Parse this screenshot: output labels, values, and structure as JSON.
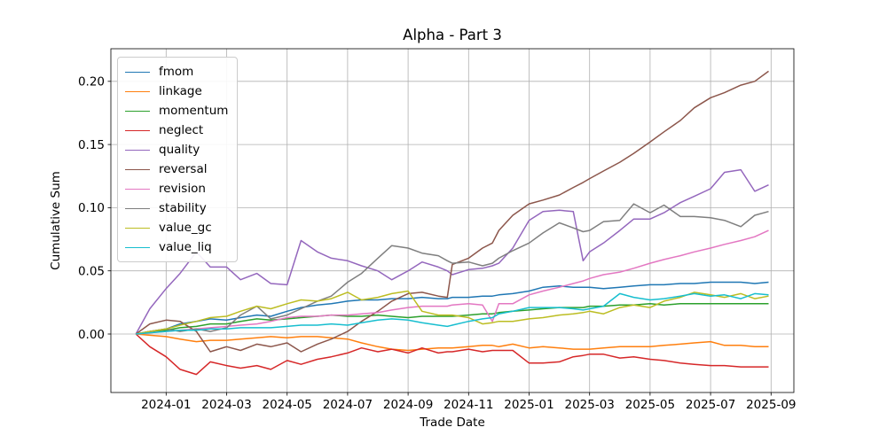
{
  "figure": {
    "title": "Alpha - Part 3",
    "xlabel": "Trade Date",
    "ylabel": "Cumulative Sum"
  },
  "chart_data": {
    "type": "line",
    "title": "Alpha - Part 3",
    "xlabel": "Trade Date",
    "ylabel": "Cumulative Sum",
    "grid": true,
    "legend_position": "upper left",
    "ylim": [
      -0.046,
      0.226
    ],
    "yticks": [
      0.0,
      0.05,
      0.1,
      0.15,
      0.2
    ],
    "xticks": [
      "2024-01",
      "2024-03",
      "2024-05",
      "2024-07",
      "2024-09",
      "2024-11",
      "2025-01",
      "2025-03",
      "2025-05",
      "2025-07",
      "2025-09"
    ],
    "x": [
      "2023-12-01",
      "2023-12-15",
      "2024-01-01",
      "2024-01-15",
      "2024-02-01",
      "2024-02-15",
      "2024-03-01",
      "2024-03-15",
      "2024-04-01",
      "2024-04-15",
      "2024-05-01",
      "2024-05-15",
      "2024-06-01",
      "2024-06-15",
      "2024-07-01",
      "2024-07-15",
      "2024-08-01",
      "2024-08-15",
      "2024-09-01",
      "2024-09-15",
      "2024-10-01",
      "2024-10-10",
      "2024-10-15",
      "2024-11-01",
      "2024-11-15",
      "2024-11-25",
      "2024-12-01",
      "2024-12-15",
      "2025-01-01",
      "2025-01-15",
      "2025-02-01",
      "2025-02-15",
      "2025-02-25",
      "2025-03-01",
      "2025-03-15",
      "2025-04-01",
      "2025-04-15",
      "2025-05-01",
      "2025-05-15",
      "2025-06-01",
      "2025-06-15",
      "2025-07-01",
      "2025-07-15",
      "2025-08-01",
      "2025-08-15",
      "2025-08-29"
    ],
    "series": [
      {
        "name": "fmom",
        "color": "#1f77b4",
        "values": [
          0.0,
          0.002,
          0.004,
          0.008,
          0.01,
          0.012,
          0.011,
          0.013,
          0.015,
          0.014,
          0.018,
          0.021,
          0.023,
          0.024,
          0.026,
          0.027,
          0.027,
          0.028,
          0.028,
          0.029,
          0.028,
          0.028,
          0.029,
          0.029,
          0.03,
          0.03,
          0.031,
          0.032,
          0.034,
          0.037,
          0.038,
          0.037,
          0.037,
          0.037,
          0.036,
          0.037,
          0.038,
          0.039,
          0.039,
          0.04,
          0.04,
          0.041,
          0.041,
          0.041,
          0.04,
          0.041
        ]
      },
      {
        "name": "linkage",
        "color": "#ff7f0e",
        "values": [
          0.0,
          -0.001,
          -0.002,
          -0.004,
          -0.006,
          -0.005,
          -0.005,
          -0.004,
          -0.003,
          -0.002,
          -0.003,
          -0.002,
          -0.002,
          -0.003,
          -0.004,
          -0.007,
          -0.01,
          -0.012,
          -0.013,
          -0.012,
          -0.011,
          -0.011,
          -0.011,
          -0.01,
          -0.009,
          -0.009,
          -0.01,
          -0.008,
          -0.011,
          -0.01,
          -0.011,
          -0.012,
          -0.012,
          -0.012,
          -0.011,
          -0.01,
          -0.01,
          -0.01,
          -0.009,
          -0.008,
          -0.007,
          -0.006,
          -0.009,
          -0.009,
          -0.01,
          -0.01
        ]
      },
      {
        "name": "momentum",
        "color": "#2ca02c",
        "values": [
          0.0,
          0.002,
          0.003,
          0.005,
          0.006,
          0.008,
          0.008,
          0.01,
          0.012,
          0.011,
          0.012,
          0.013,
          0.014,
          0.015,
          0.014,
          0.014,
          0.015,
          0.014,
          0.013,
          0.014,
          0.014,
          0.014,
          0.014,
          0.015,
          0.016,
          0.016,
          0.017,
          0.018,
          0.019,
          0.02,
          0.021,
          0.021,
          0.021,
          0.022,
          0.022,
          0.023,
          0.023,
          0.024,
          0.023,
          0.024,
          0.024,
          0.024,
          0.024,
          0.024,
          0.024,
          0.024
        ]
      },
      {
        "name": "neglect",
        "color": "#d62728",
        "values": [
          0.0,
          -0.01,
          -0.018,
          -0.028,
          -0.032,
          -0.022,
          -0.025,
          -0.027,
          -0.025,
          -0.028,
          -0.021,
          -0.024,
          -0.02,
          -0.018,
          -0.015,
          -0.011,
          -0.014,
          -0.012,
          -0.015,
          -0.011,
          -0.015,
          -0.014,
          -0.014,
          -0.012,
          -0.014,
          -0.013,
          -0.013,
          -0.013,
          -0.023,
          -0.023,
          -0.022,
          -0.018,
          -0.017,
          -0.016,
          -0.016,
          -0.019,
          -0.018,
          -0.02,
          -0.021,
          -0.023,
          -0.024,
          -0.025,
          -0.025,
          -0.026,
          -0.026,
          -0.026
        ]
      },
      {
        "name": "quality",
        "color": "#9467bd",
        "values": [
          0.0,
          0.02,
          0.036,
          0.048,
          0.065,
          0.053,
          0.053,
          0.043,
          0.048,
          0.04,
          0.039,
          0.074,
          0.065,
          0.06,
          0.058,
          0.054,
          0.05,
          0.043,
          0.05,
          0.057,
          0.053,
          0.05,
          0.047,
          0.051,
          0.052,
          0.054,
          0.056,
          0.068,
          0.09,
          0.097,
          0.098,
          0.097,
          0.058,
          0.065,
          0.072,
          0.082,
          0.091,
          0.091,
          0.096,
          0.104,
          0.109,
          0.115,
          0.128,
          0.13,
          0.113,
          0.118
        ]
      },
      {
        "name": "reversal",
        "color": "#8c564b",
        "values": [
          0.0,
          0.008,
          0.011,
          0.01,
          0.002,
          -0.014,
          -0.01,
          -0.013,
          -0.008,
          -0.01,
          -0.007,
          -0.014,
          -0.008,
          -0.004,
          0.002,
          0.01,
          0.018,
          0.026,
          0.032,
          0.033,
          0.03,
          0.029,
          0.055,
          0.06,
          0.068,
          0.072,
          0.082,
          0.094,
          0.103,
          0.106,
          0.11,
          0.116,
          0.12,
          0.123,
          0.129,
          0.136,
          0.143,
          0.152,
          0.16,
          0.169,
          0.179,
          0.187,
          0.191,
          0.197,
          0.2,
          0.208
        ]
      },
      {
        "name": "revision",
        "color": "#e377c2",
        "values": [
          0.0,
          0.001,
          0.002,
          0.003,
          0.004,
          0.005,
          0.006,
          0.007,
          0.008,
          0.01,
          0.013,
          0.014,
          0.014,
          0.015,
          0.015,
          0.016,
          0.017,
          0.019,
          0.021,
          0.022,
          0.022,
          0.022,
          0.023,
          0.024,
          0.023,
          0.01,
          0.024,
          0.024,
          0.031,
          0.034,
          0.037,
          0.04,
          0.042,
          0.044,
          0.047,
          0.049,
          0.052,
          0.056,
          0.059,
          0.062,
          0.065,
          0.068,
          0.071,
          0.074,
          0.077,
          0.082
        ]
      },
      {
        "name": "stability",
        "color": "#7f7f7f",
        "values": [
          0.0,
          0.002,
          0.004,
          0.002,
          0.004,
          0.002,
          0.005,
          0.015,
          0.022,
          0.012,
          0.015,
          0.02,
          0.026,
          0.03,
          0.041,
          0.048,
          0.06,
          0.07,
          0.068,
          0.064,
          0.062,
          0.058,
          0.056,
          0.057,
          0.054,
          0.056,
          0.06,
          0.066,
          0.072,
          0.08,
          0.088,
          0.084,
          0.081,
          0.082,
          0.089,
          0.09,
          0.103,
          0.096,
          0.102,
          0.093,
          0.093,
          0.092,
          0.09,
          0.085,
          0.094,
          0.097
        ]
      },
      {
        "name": "value_gc",
        "color": "#bcbd22",
        "values": [
          0.0,
          0.002,
          0.004,
          0.007,
          0.01,
          0.013,
          0.014,
          0.018,
          0.022,
          0.02,
          0.024,
          0.027,
          0.026,
          0.028,
          0.033,
          0.027,
          0.029,
          0.032,
          0.034,
          0.018,
          0.015,
          0.015,
          0.015,
          0.013,
          0.008,
          0.009,
          0.01,
          0.01,
          0.012,
          0.013,
          0.015,
          0.016,
          0.017,
          0.018,
          0.016,
          0.021,
          0.023,
          0.021,
          0.026,
          0.029,
          0.033,
          0.031,
          0.029,
          0.032,
          0.028,
          0.03
        ]
      },
      {
        "name": "value_liq",
        "color": "#17becf",
        "values": [
          0.0,
          0.001,
          0.002,
          0.003,
          0.003,
          0.004,
          0.004,
          0.005,
          0.005,
          0.005,
          0.006,
          0.007,
          0.007,
          0.008,
          0.007,
          0.009,
          0.011,
          0.012,
          0.011,
          0.009,
          0.007,
          0.006,
          0.007,
          0.01,
          0.012,
          0.013,
          0.016,
          0.018,
          0.021,
          0.021,
          0.021,
          0.02,
          0.019,
          0.02,
          0.022,
          0.032,
          0.029,
          0.027,
          0.028,
          0.03,
          0.032,
          0.03,
          0.031,
          0.028,
          0.032,
          0.031
        ]
      }
    ]
  }
}
